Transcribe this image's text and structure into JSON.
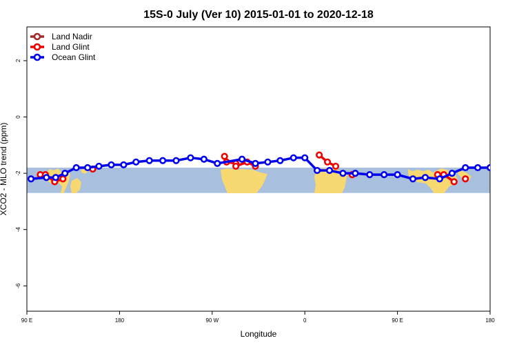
{
  "chart_data": {
    "type": "line",
    "title": "15S-0 July (Ver 10)   2015-01-01 to 2020-12-18",
    "xlabel": "Longitude",
    "ylabel": "XCO2 - MLO trend (ppm)",
    "xlim": [
      90,
      450
    ],
    "ylim": [
      -6.9,
      3.2
    ],
    "x_ticks": [
      {
        "value": 90,
        "label": "90 E"
      },
      {
        "value": 180,
        "label": "180"
      },
      {
        "value": 270,
        "label": "90 W"
      },
      {
        "value": 360,
        "label": "0"
      },
      {
        "value": 450,
        "label": "90 E"
      },
      {
        "value": 540,
        "label": "180"
      }
    ],
    "y_ticks": [
      {
        "value": 2,
        "label": "2"
      },
      {
        "value": 0,
        "label": "0"
      },
      {
        "value": -2,
        "label": "-2"
      },
      {
        "value": -4,
        "label": "-4"
      },
      {
        "value": -6,
        "label": "-6"
      }
    ],
    "legend_position": "top-left",
    "background_band": {
      "y_from": -2.7,
      "y_to": -1.8,
      "ocean_color": "#a8bfdd",
      "land_color": "#f8d870"
    },
    "series": [
      {
        "name": "Land Nadir",
        "color": "#a52a2a",
        "x": [],
        "y": []
      },
      {
        "name": "Land Glint",
        "color": "#ee0000",
        "segments": [
          {
            "x": [
              103,
              108,
              117,
              125
            ],
            "y": [
              -2.05,
              -2.05,
              -2.3,
              -2.2
            ]
          },
          {
            "x": [
              154
            ],
            "y": [
              -1.85
            ]
          },
          {
            "x": [
              282,
              284,
              293,
              293,
              304,
              312
            ],
            "y": [
              -1.4,
              -1.6,
              -1.65,
              -1.75,
              -1.6,
              -1.75
            ]
          },
          {
            "x": [
              374,
              382,
              390
            ],
            "y": [
              -1.35,
              -1.6,
              -1.75
            ]
          },
          {
            "x": [
              406
            ],
            "y": [
              -2.05
            ]
          },
          {
            "x": [
              489,
              495,
              505
            ],
            "y": [
              -2.05,
              -2.05,
              -2.3
            ]
          },
          {
            "x": [
              516
            ],
            "y": [
              -2.2
            ]
          }
        ]
      },
      {
        "name": "Ocean Glint",
        "color": "#0000ee",
        "segments": [
          {
            "x": [
              94,
              109,
              118,
              127,
              138,
              149,
              160,
              172,
              184,
              196,
              209,
              222,
              235,
              249,
              262,
              275,
              299,
              312,
              324,
              336,
              349,
              360,
              372,
              384,
              397,
              409,
              423,
              437,
              450,
              465,
              477,
              491,
              503,
              516,
              528,
              540
            ],
            "y": [
              -2.2,
              -2.15,
              -2.15,
              -2.0,
              -1.8,
              -1.8,
              -1.75,
              -1.7,
              -1.7,
              -1.6,
              -1.55,
              -1.55,
              -1.55,
              -1.45,
              -1.5,
              -1.65,
              -1.5,
              -1.65,
              -1.6,
              -1.55,
              -1.45,
              -1.45,
              -1.9,
              -1.9,
              -2.0,
              -2.0,
              -2.05,
              -2.05,
              -2.05,
              -2.2,
              -2.15,
              -2.2,
              -2.0,
              -1.8,
              -1.8,
              -1.8
            ]
          }
        ]
      }
    ]
  }
}
